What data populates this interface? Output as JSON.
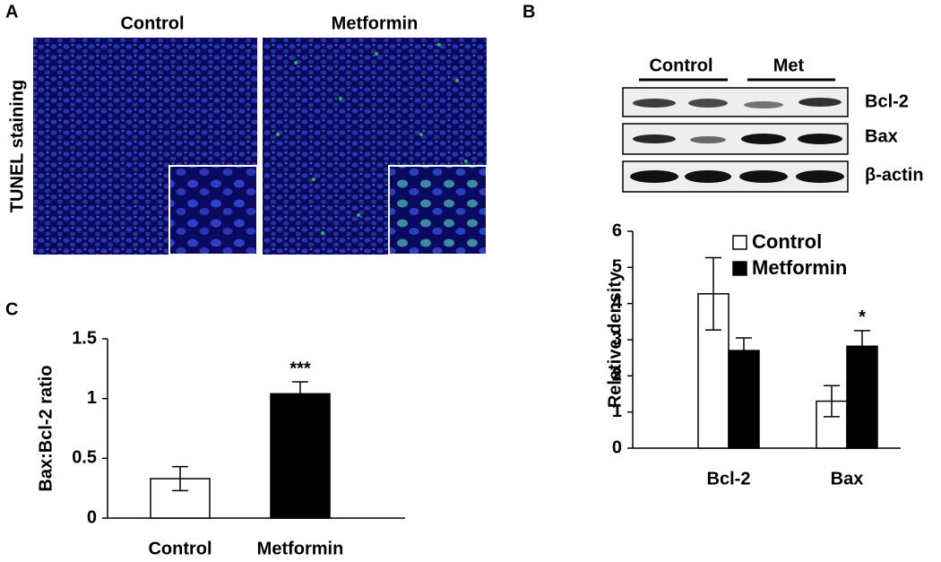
{
  "panel_a": {
    "label": "A",
    "titles": [
      "Control",
      "Metformin"
    ],
    "side_label": "TUNEL staining"
  },
  "panel_b": {
    "label": "B",
    "lane_groups": [
      "Control",
      "Met"
    ],
    "rows": [
      "Bcl-2",
      "Bax",
      "β-actin"
    ]
  },
  "panel_c": {
    "label": "C"
  },
  "chart_data": [
    {
      "type": "bar",
      "ylabel": "Relative density",
      "categories": [
        "Bcl-2",
        "Bax"
      ],
      "series": [
        {
          "name": "Control",
          "color": "#ffffff",
          "values": [
            4.27,
            1.3
          ],
          "errors": [
            1.0,
            0.43
          ],
          "annotations": [
            null,
            null
          ]
        },
        {
          "name": "Metformin",
          "color": "#000000",
          "values": [
            2.7,
            2.82
          ],
          "errors": [
            0.35,
            0.43
          ],
          "annotations": [
            null,
            "*"
          ]
        }
      ],
      "ylim": [
        0,
        6
      ],
      "yticks": [
        0,
        1,
        2,
        3,
        4,
        5,
        6
      ],
      "legend": "top"
    },
    {
      "type": "bar",
      "ylabel": "Bax:Bcl-2 ratio",
      "categories": [
        "Control",
        "Metformin"
      ],
      "values": [
        0.33,
        1.04
      ],
      "errors": [
        0.1,
        0.1
      ],
      "colors": [
        "#ffffff",
        "#000000"
      ],
      "annotations": [
        null,
        "***"
      ],
      "ylim": [
        0,
        1.5
      ],
      "yticks": [
        0,
        0.5,
        1,
        1.5
      ]
    }
  ]
}
